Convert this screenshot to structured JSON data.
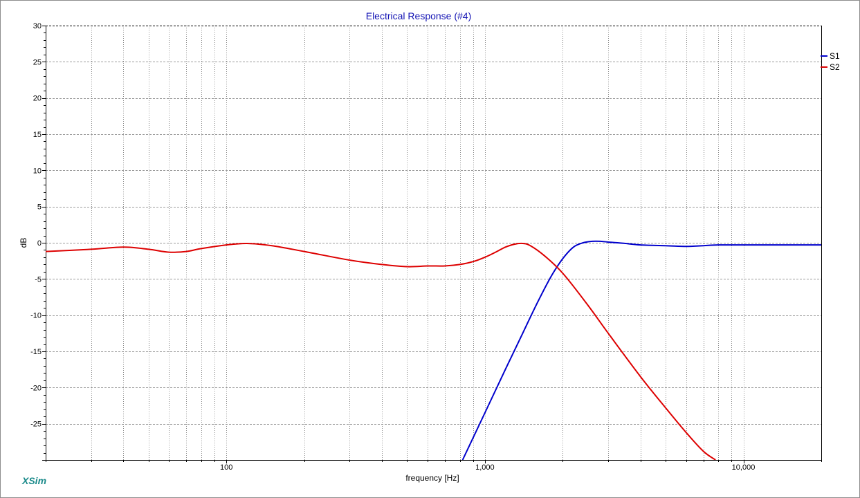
{
  "chart_data": {
    "type": "line",
    "title": "Electrical Response (#4)",
    "xlabel": "frequency [Hz]",
    "ylabel": "dB",
    "x_scale": "log",
    "xlim": [
      20,
      20000
    ],
    "ylim": [
      -30,
      30
    ],
    "x_ticks": [
      {
        "value": 100,
        "label": "100"
      },
      {
        "value": 1000,
        "label": "1,000"
      },
      {
        "value": 10000,
        "label": "10,000"
      }
    ],
    "y_ticks": [
      {
        "value": 30,
        "label": "30"
      },
      {
        "value": 25,
        "label": "25"
      },
      {
        "value": 20,
        "label": "20"
      },
      {
        "value": 15,
        "label": "15"
      },
      {
        "value": 10,
        "label": "10"
      },
      {
        "value": 5,
        "label": "5"
      },
      {
        "value": 0,
        "label": "0"
      },
      {
        "value": -5,
        "label": "-5"
      },
      {
        "value": -10,
        "label": "-10"
      },
      {
        "value": -15,
        "label": "-15"
      },
      {
        "value": -20,
        "label": "-20"
      },
      {
        "value": -25,
        "label": "-25"
      }
    ],
    "grid": true,
    "legend_position": "right",
    "series": [
      {
        "name": "S1",
        "color": "#0000cc",
        "x": [
          820,
          1000,
          1200,
          1400,
          1600,
          1800,
          2000,
          2200,
          2400,
          2600,
          2800,
          3000,
          3500,
          4000,
          5000,
          6000,
          7000,
          8000,
          10000,
          12000,
          15000,
          20000
        ],
        "y": [
          -30,
          -23.5,
          -17.5,
          -12.5,
          -8.2,
          -4.7,
          -2.2,
          -0.6,
          0.0,
          0.2,
          0.2,
          0.1,
          -0.1,
          -0.3,
          -0.4,
          -0.5,
          -0.4,
          -0.3,
          -0.3,
          -0.3,
          -0.3,
          -0.3
        ]
      },
      {
        "name": "S2",
        "color": "#dd0000",
        "x": [
          20,
          30,
          40,
          50,
          60,
          70,
          80,
          100,
          120,
          150,
          200,
          300,
          400,
          500,
          600,
          700,
          800,
          900,
          1000,
          1100,
          1200,
          1300,
          1400,
          1500,
          1700,
          2000,
          2500,
          3000,
          4000,
          5000,
          6000,
          7000,
          7800
        ],
        "y": [
          -1.2,
          -0.9,
          -0.6,
          -0.9,
          -1.3,
          -1.2,
          -0.8,
          -0.3,
          -0.1,
          -0.4,
          -1.2,
          -2.4,
          -3.0,
          -3.3,
          -3.2,
          -3.2,
          -3.0,
          -2.6,
          -2.0,
          -1.3,
          -0.6,
          -0.2,
          -0.1,
          -0.4,
          -1.8,
          -4.2,
          -8.6,
          -12.5,
          -18.5,
          -22.8,
          -26.2,
          -28.8,
          -30
        ]
      }
    ]
  },
  "branding": {
    "text": "XSim"
  }
}
